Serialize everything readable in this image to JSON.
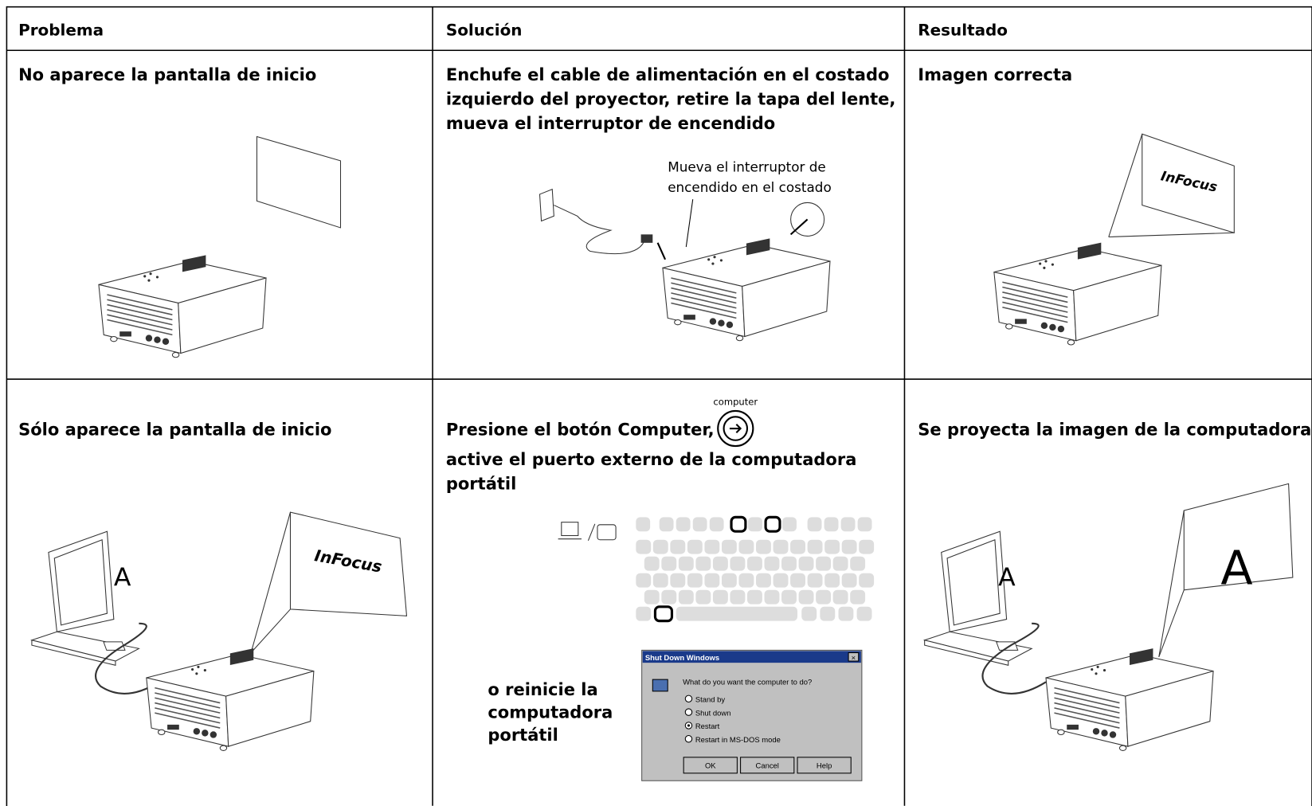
{
  "table": {
    "headers": [
      "Problema",
      "Solución",
      "Resultado"
    ],
    "rows": [
      {
        "problem": "No aparece la pantalla de inicio",
        "solution": [
          "Enchufe el cable de alimentación en el costado",
          "izquierdo del proyector, retire la tapa del lente,",
          "mueva el interruptor de encendido"
        ],
        "callout": [
          "Mueva el interruptor de",
          "encendido en el costado"
        ],
        "result": "Imagen correcta",
        "logo": "InFocus"
      },
      {
        "problem": "Sólo aparece la pantalla de inicio",
        "solution": [
          "Presione el botón Computer,",
          "active el puerto externo de la computadora",
          "portátil"
        ],
        "button_label": "computer",
        "alternative": [
          "o reinicie la",
          "computadora",
          "portátil"
        ],
        "result": "Se proyecta la imagen de la computadora",
        "logo": "InFocus",
        "screen_letter": "A"
      }
    ]
  },
  "dialog": {
    "title": "Shut Down Windows",
    "question": "What do you want the computer to do?",
    "options": [
      "Stand by",
      "Shut down",
      "Restart",
      "Restart in MS-DOS mode"
    ],
    "buttons": [
      "OK",
      "Cancel",
      "Help"
    ]
  }
}
